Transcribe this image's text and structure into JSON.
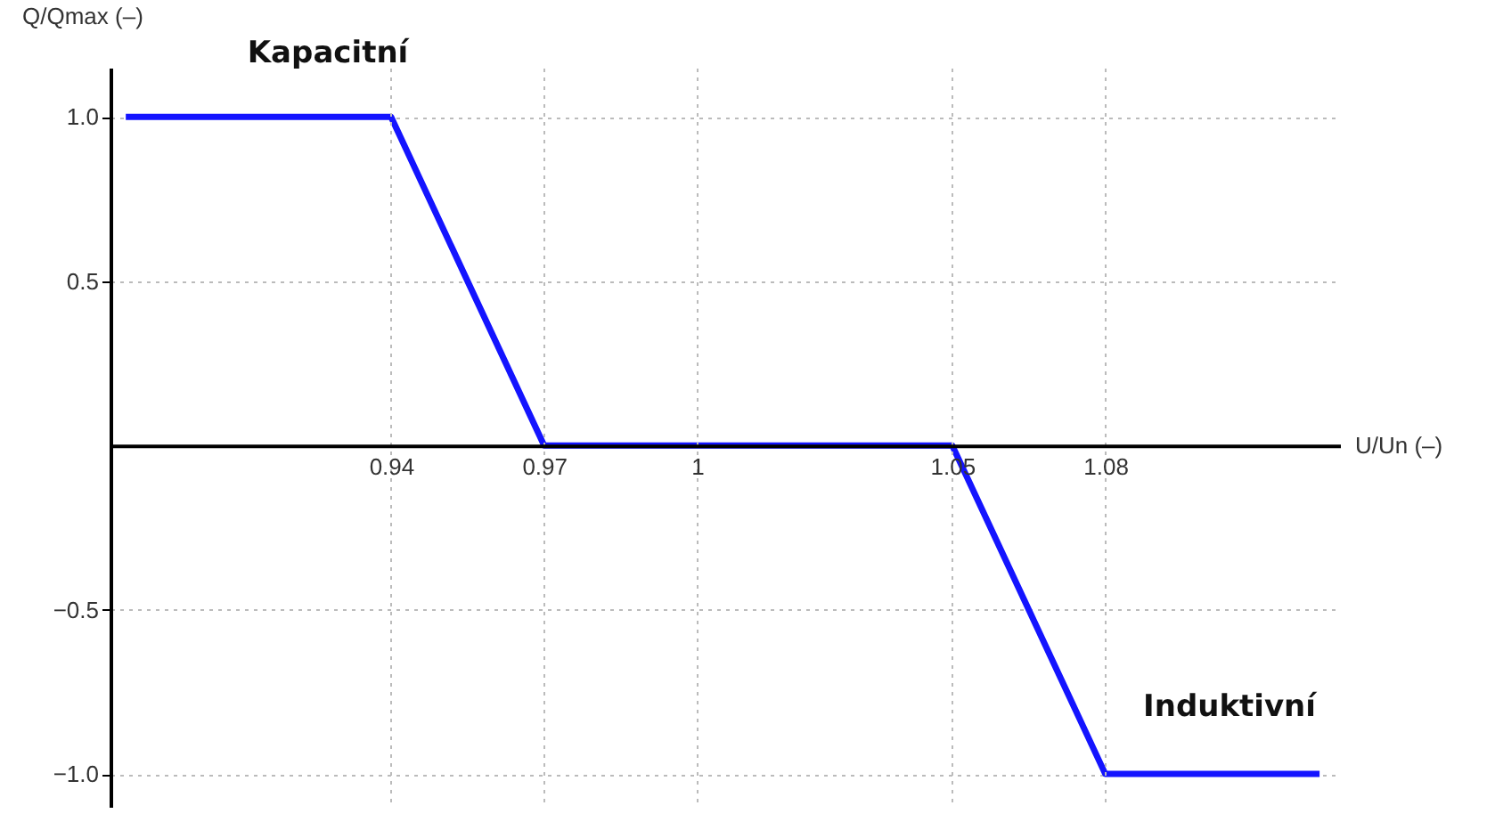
{
  "chart_data": {
    "type": "line",
    "xlabel": "U/Un (–)",
    "ylabel": "Q/Qmax (–)",
    "x": [
      0.888,
      0.94,
      0.97,
      1.05,
      1.08,
      1.122
    ],
    "series": [
      {
        "color": "#1414ff",
        "values": [
          1,
          1,
          0,
          0,
          -1,
          -1
        ]
      }
    ],
    "xlim": [
      0.885,
      1.126
    ],
    "ylim": [
      -1.1,
      1.15
    ],
    "xticks": [
      0.94,
      0.97,
      1,
      1.05,
      1.08
    ],
    "yticks": [
      {
        "value": 1,
        "label": "1.0"
      },
      {
        "value": 0.5,
        "label": "0.5"
      },
      {
        "value": -0.5,
        "label": "−0.5"
      },
      {
        "value": -1,
        "label": "−1.0"
      }
    ],
    "grid": true,
    "annotations": [
      "Kapacitní",
      "Induktivní"
    ]
  }
}
